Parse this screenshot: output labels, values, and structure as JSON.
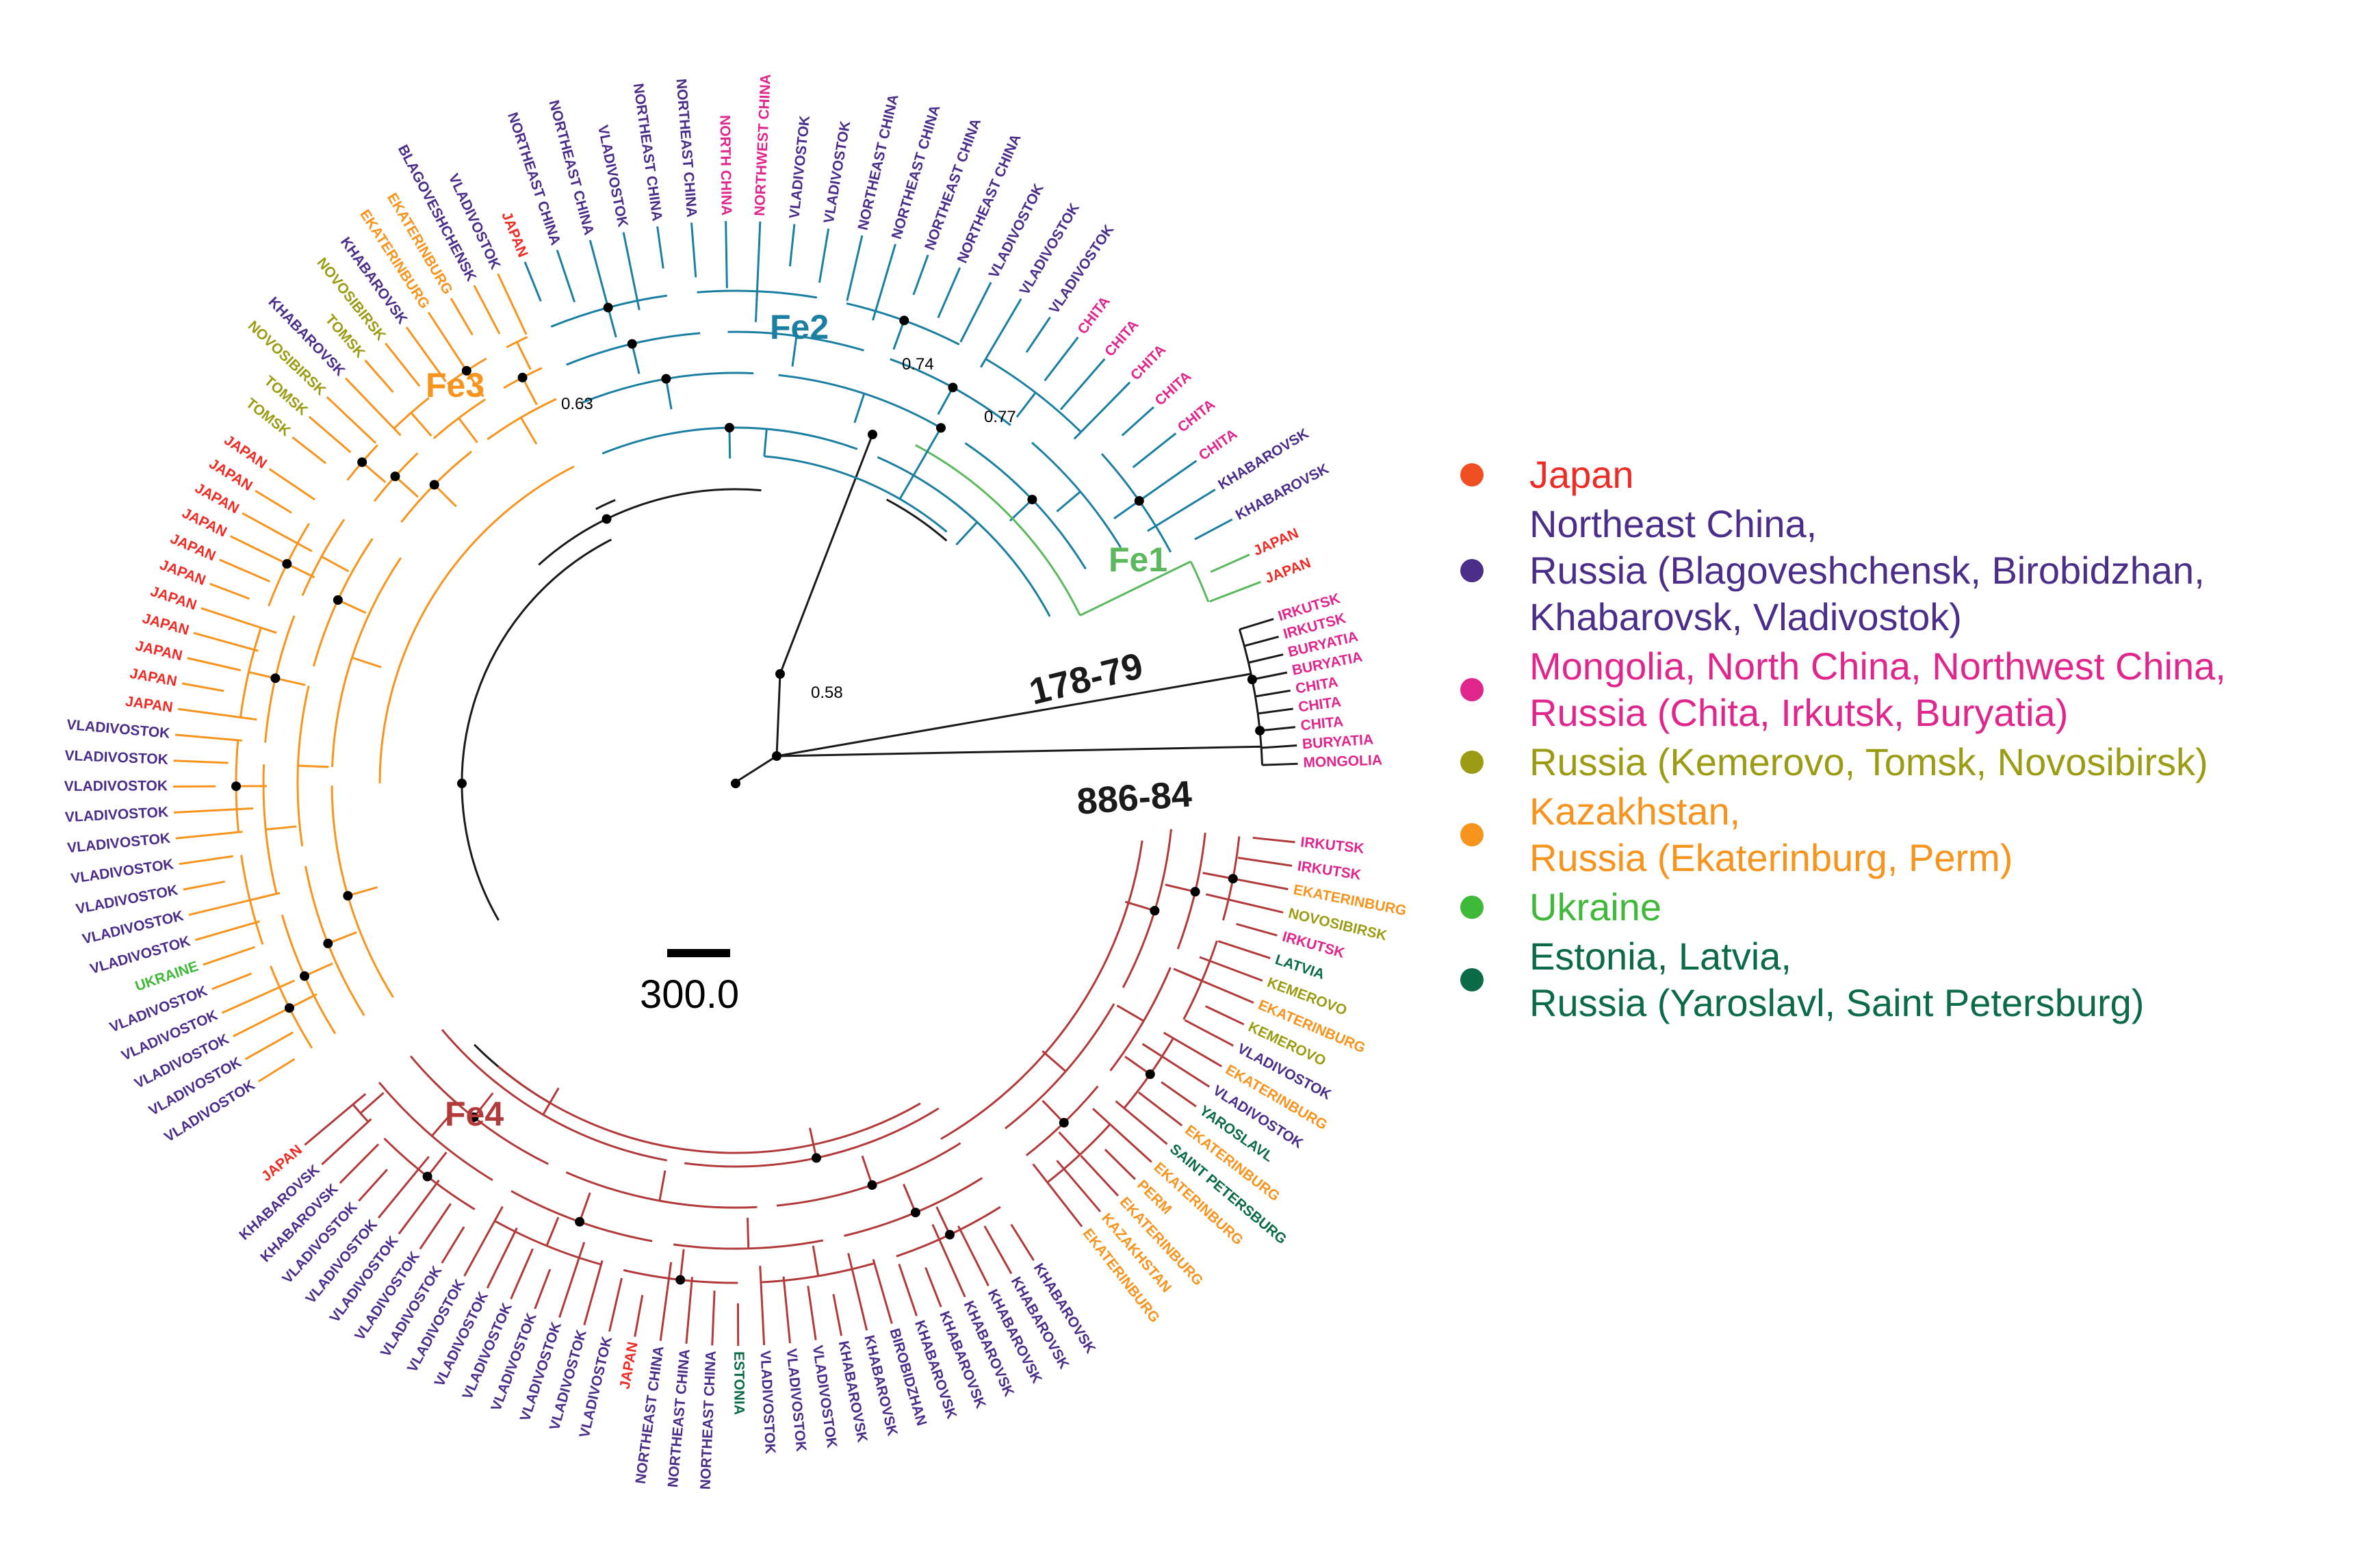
{
  "colors": {
    "japan": "#ee2b24",
    "northeast": "#4b2e8a",
    "mongolia": "#e0258d",
    "siberia": "#9c9c14",
    "kazakhstan": "#f7941d",
    "ukraine": "#3fb93a",
    "baltic": "#0a6b46",
    "fe2": "#1b7fa2",
    "fe1": "#5cb85c",
    "fe4": "#b23a3a",
    "backbone": "#1a1a1a"
  },
  "clades": {
    "fe1": "Fe1",
    "fe2": "Fe2",
    "fe3": "Fe3",
    "fe4": "Fe4"
  },
  "outgroups": {
    "strain_a": "178-79",
    "strain_b": "886-84"
  },
  "support_values": {
    "root": "0.58",
    "fe3_node": "0.63",
    "fe2_node": "0.74",
    "fe2_fe1_node": "0.77"
  },
  "scale_bar": {
    "label": "300.0"
  },
  "tips": {
    "fe2": [
      [
        "JAPAN",
        "japan"
      ],
      [
        "NORTHEAST CHINA",
        "northeast"
      ],
      [
        "NORTHEAST CHINA",
        "northeast"
      ],
      [
        "VLADIVOSTOK",
        "northeast"
      ],
      [
        "NORTHEAST CHINA",
        "northeast"
      ],
      [
        "NORTHEAST CHINA",
        "northeast"
      ],
      [
        "NORTH CHINA",
        "mongolia"
      ],
      [
        "NORTHWEST CHINA",
        "mongolia"
      ],
      [
        "VLADIVOSTOK",
        "northeast"
      ],
      [
        "VLADIVOSTOK",
        "northeast"
      ],
      [
        "NORTHEAST CHINA",
        "northeast"
      ],
      [
        "NORTHEAST CHINA",
        "northeast"
      ],
      [
        "NORTHEAST CHINA",
        "northeast"
      ],
      [
        "NORTHEAST CHINA",
        "northeast"
      ],
      [
        "VLADIVOSTOK",
        "northeast"
      ],
      [
        "VLADIVOSTOK",
        "northeast"
      ],
      [
        "VLADIVOSTOK",
        "northeast"
      ],
      [
        "CHITA",
        "mongolia"
      ],
      [
        "CHITA",
        "mongolia"
      ],
      [
        "CHITA",
        "mongolia"
      ],
      [
        "CHITA",
        "mongolia"
      ],
      [
        "CHITA",
        "mongolia"
      ],
      [
        "CHITA",
        "mongolia"
      ],
      [
        "KHABAROVSK",
        "northeast"
      ],
      [
        "KHABAROVSK",
        "northeast"
      ]
    ],
    "fe1": [
      [
        "JAPAN",
        "japan"
      ],
      [
        "JAPAN",
        "japan"
      ]
    ],
    "outgroup": [
      [
        "IRKUTSK",
        "mongolia"
      ],
      [
        "IRKUTSK",
        "mongolia"
      ],
      [
        "BURYATIA",
        "mongolia"
      ],
      [
        "BURYATIA",
        "mongolia"
      ],
      [
        "CHITA",
        "mongolia"
      ],
      [
        "CHITA",
        "mongolia"
      ],
      [
        "CHITA",
        "mongolia"
      ],
      [
        "BURYATIA",
        "mongolia"
      ],
      [
        "MONGOLIA",
        "mongolia"
      ]
    ],
    "fe4_right": [
      [
        "IRKUTSK",
        "mongolia"
      ],
      [
        "IRKUTSK",
        "mongolia"
      ],
      [
        "EKATERINBURG",
        "kazakhstan"
      ],
      [
        "NOVOSIBIRSK",
        "siberia"
      ],
      [
        "IRKUTSK",
        "mongolia"
      ],
      [
        "LATVIA",
        "baltic"
      ],
      [
        "KEMEROVO",
        "siberia"
      ],
      [
        "EKATERINBURG",
        "kazakhstan"
      ],
      [
        "KEMEROVO",
        "siberia"
      ],
      [
        "VLADIVOSTOK",
        "northeast"
      ],
      [
        "EKATERINBURG",
        "kazakhstan"
      ],
      [
        "VLADIVOSTOK",
        "northeast"
      ],
      [
        "YAROSLAVL",
        "baltic"
      ],
      [
        "EKATERINBURG",
        "kazakhstan"
      ],
      [
        "SAINT PETERSBURG",
        "baltic"
      ],
      [
        "EKATERINBURG",
        "kazakhstan"
      ],
      [
        "PERM",
        "kazakhstan"
      ],
      [
        "EKATERINBURG",
        "kazakhstan"
      ],
      [
        "KAZAKHSTAN",
        "kazakhstan"
      ],
      [
        "EKATERINBURG",
        "kazakhstan"
      ]
    ],
    "fe4_bottom": [
      [
        "KHABAROVSK",
        "northeast"
      ],
      [
        "KHABAROVSK",
        "northeast"
      ],
      [
        "KHABAROVSK",
        "northeast"
      ],
      [
        "KHABAROVSK",
        "northeast"
      ],
      [
        "KHABAROVSK",
        "northeast"
      ],
      [
        "KHABAROVSK",
        "northeast"
      ],
      [
        "BIROBIDZHAN",
        "northeast"
      ],
      [
        "KHABAROVSK",
        "northeast"
      ],
      [
        "KHABAROVSK",
        "northeast"
      ],
      [
        "VLADIVOSTOK",
        "northeast"
      ],
      [
        "VLADIVOSTOK",
        "northeast"
      ],
      [
        "VLADIVOSTOK",
        "northeast"
      ],
      [
        "ESTONIA",
        "baltic"
      ],
      [
        "NORTHEAST CHINA",
        "northeast"
      ],
      [
        "NORTHEAST CHINA",
        "northeast"
      ],
      [
        "NORTHEAST CHINA",
        "northeast"
      ],
      [
        "JAPAN",
        "japan"
      ],
      [
        "VLADIVOSTOK",
        "northeast"
      ],
      [
        "VLADIVOSTOK",
        "northeast"
      ],
      [
        "VLADIVOSTOK",
        "northeast"
      ],
      [
        "VLADIVOSTOK",
        "northeast"
      ],
      [
        "VLADIVOSTOK",
        "northeast"
      ],
      [
        "VLADIVOSTOK",
        "northeast"
      ],
      [
        "VLADIVOSTOK",
        "northeast"
      ],
      [
        "VLADIVOSTOK",
        "northeast"
      ],
      [
        "VLADIVOSTOK",
        "northeast"
      ],
      [
        "VLADIVOSTOK",
        "northeast"
      ],
      [
        "VLADIVOSTOK",
        "northeast"
      ],
      [
        "VLADIVOSTOK",
        "northeast"
      ],
      [
        "KHABAROVSK",
        "northeast"
      ],
      [
        "KHABAROVSK",
        "northeast"
      ],
      [
        "JAPAN",
        "japan"
      ]
    ],
    "fe3_left": [
      [
        "VLADIVOSTOK",
        "northeast"
      ],
      [
        "VLADIVOSTOK",
        "northeast"
      ],
      [
        "VLADIVOSTOK",
        "northeast"
      ],
      [
        "VLADIVOSTOK",
        "northeast"
      ],
      [
        "VLADIVOSTOK",
        "northeast"
      ],
      [
        "UKRAINE",
        "ukraine"
      ],
      [
        "VLADIVOSTOK",
        "northeast"
      ],
      [
        "VLADIVOSTOK",
        "northeast"
      ],
      [
        "VLADIVOSTOK",
        "northeast"
      ],
      [
        "VLADIVOSTOK",
        "northeast"
      ],
      [
        "VLADIVOSTOK",
        "northeast"
      ],
      [
        "VLADIVOSTOK",
        "northeast"
      ],
      [
        "VLADIVOSTOK",
        "northeast"
      ],
      [
        "VLADIVOSTOK",
        "northeast"
      ],
      [
        "VLADIVOSTOK",
        "northeast"
      ],
      [
        "JAPAN",
        "japan"
      ],
      [
        "JAPAN",
        "japan"
      ],
      [
        "JAPAN",
        "japan"
      ],
      [
        "JAPAN",
        "japan"
      ],
      [
        "JAPAN",
        "japan"
      ],
      [
        "JAPAN",
        "japan"
      ],
      [
        "JAPAN",
        "japan"
      ],
      [
        "JAPAN",
        "japan"
      ],
      [
        "JAPAN",
        "japan"
      ],
      [
        "JAPAN",
        "japan"
      ],
      [
        "JAPAN",
        "japan"
      ]
    ],
    "fe3_top": [
      [
        "TOMSK",
        "siberia"
      ],
      [
        "TOMSK",
        "siberia"
      ],
      [
        "NOVOSIBIRSK",
        "siberia"
      ],
      [
        "KHABAROVSK",
        "northeast"
      ],
      [
        "TOMSK",
        "siberia"
      ],
      [
        "NOVOSIBIRSK",
        "siberia"
      ],
      [
        "KHABAROVSK",
        "northeast"
      ],
      [
        "EKATERINBURG",
        "kazakhstan"
      ],
      [
        "EKATERINBURG",
        "kazakhstan"
      ],
      [
        "BLAGOVESHCHENSK",
        "northeast"
      ],
      [
        "VLADIVOSTOK",
        "northeast"
      ]
    ]
  },
  "legend": [
    {
      "color": "#f04e23",
      "lines": [
        "Japan"
      ],
      "text_color": "#ee2b24",
      "spacer": false
    },
    {
      "color": "#4b2e8a",
      "lines": [
        "Northeast China,",
        "Russia (Blagoveshchensk, Birobidzhan,",
        "Khabarovsk, Vladivostok)"
      ],
      "text_color": "#4b2e8a",
      "spacer": true
    },
    {
      "color": "#e0258d",
      "lines": [
        "Mongolia, North China, Northwest China,",
        "Russia (Chita, Irkutsk, Buryatia)"
      ],
      "text_color": "#e0258d",
      "spacer": false
    },
    {
      "color": "#9c9c14",
      "lines": [
        "Russia (Kemerovo, Tomsk, Novosibirsk)"
      ],
      "text_color": "#9c9c14",
      "spacer": false
    },
    {
      "color": "#f7941d",
      "lines": [
        "Kazakhstan,",
        "Russia (Ekaterinburg, Perm)"
      ],
      "text_color": "#f7941d",
      "spacer": false
    },
    {
      "color": "#3fb93a",
      "lines": [
        "Ukraine"
      ],
      "text_color": "#3fb93a",
      "spacer": false
    },
    {
      "color": "#0a6b46",
      "lines": [
        "Estonia, Latvia,",
        "Russia (Yaroslavl, Saint Petersburg)"
      ],
      "text_color": "#0a6b46",
      "spacer": false
    }
  ]
}
